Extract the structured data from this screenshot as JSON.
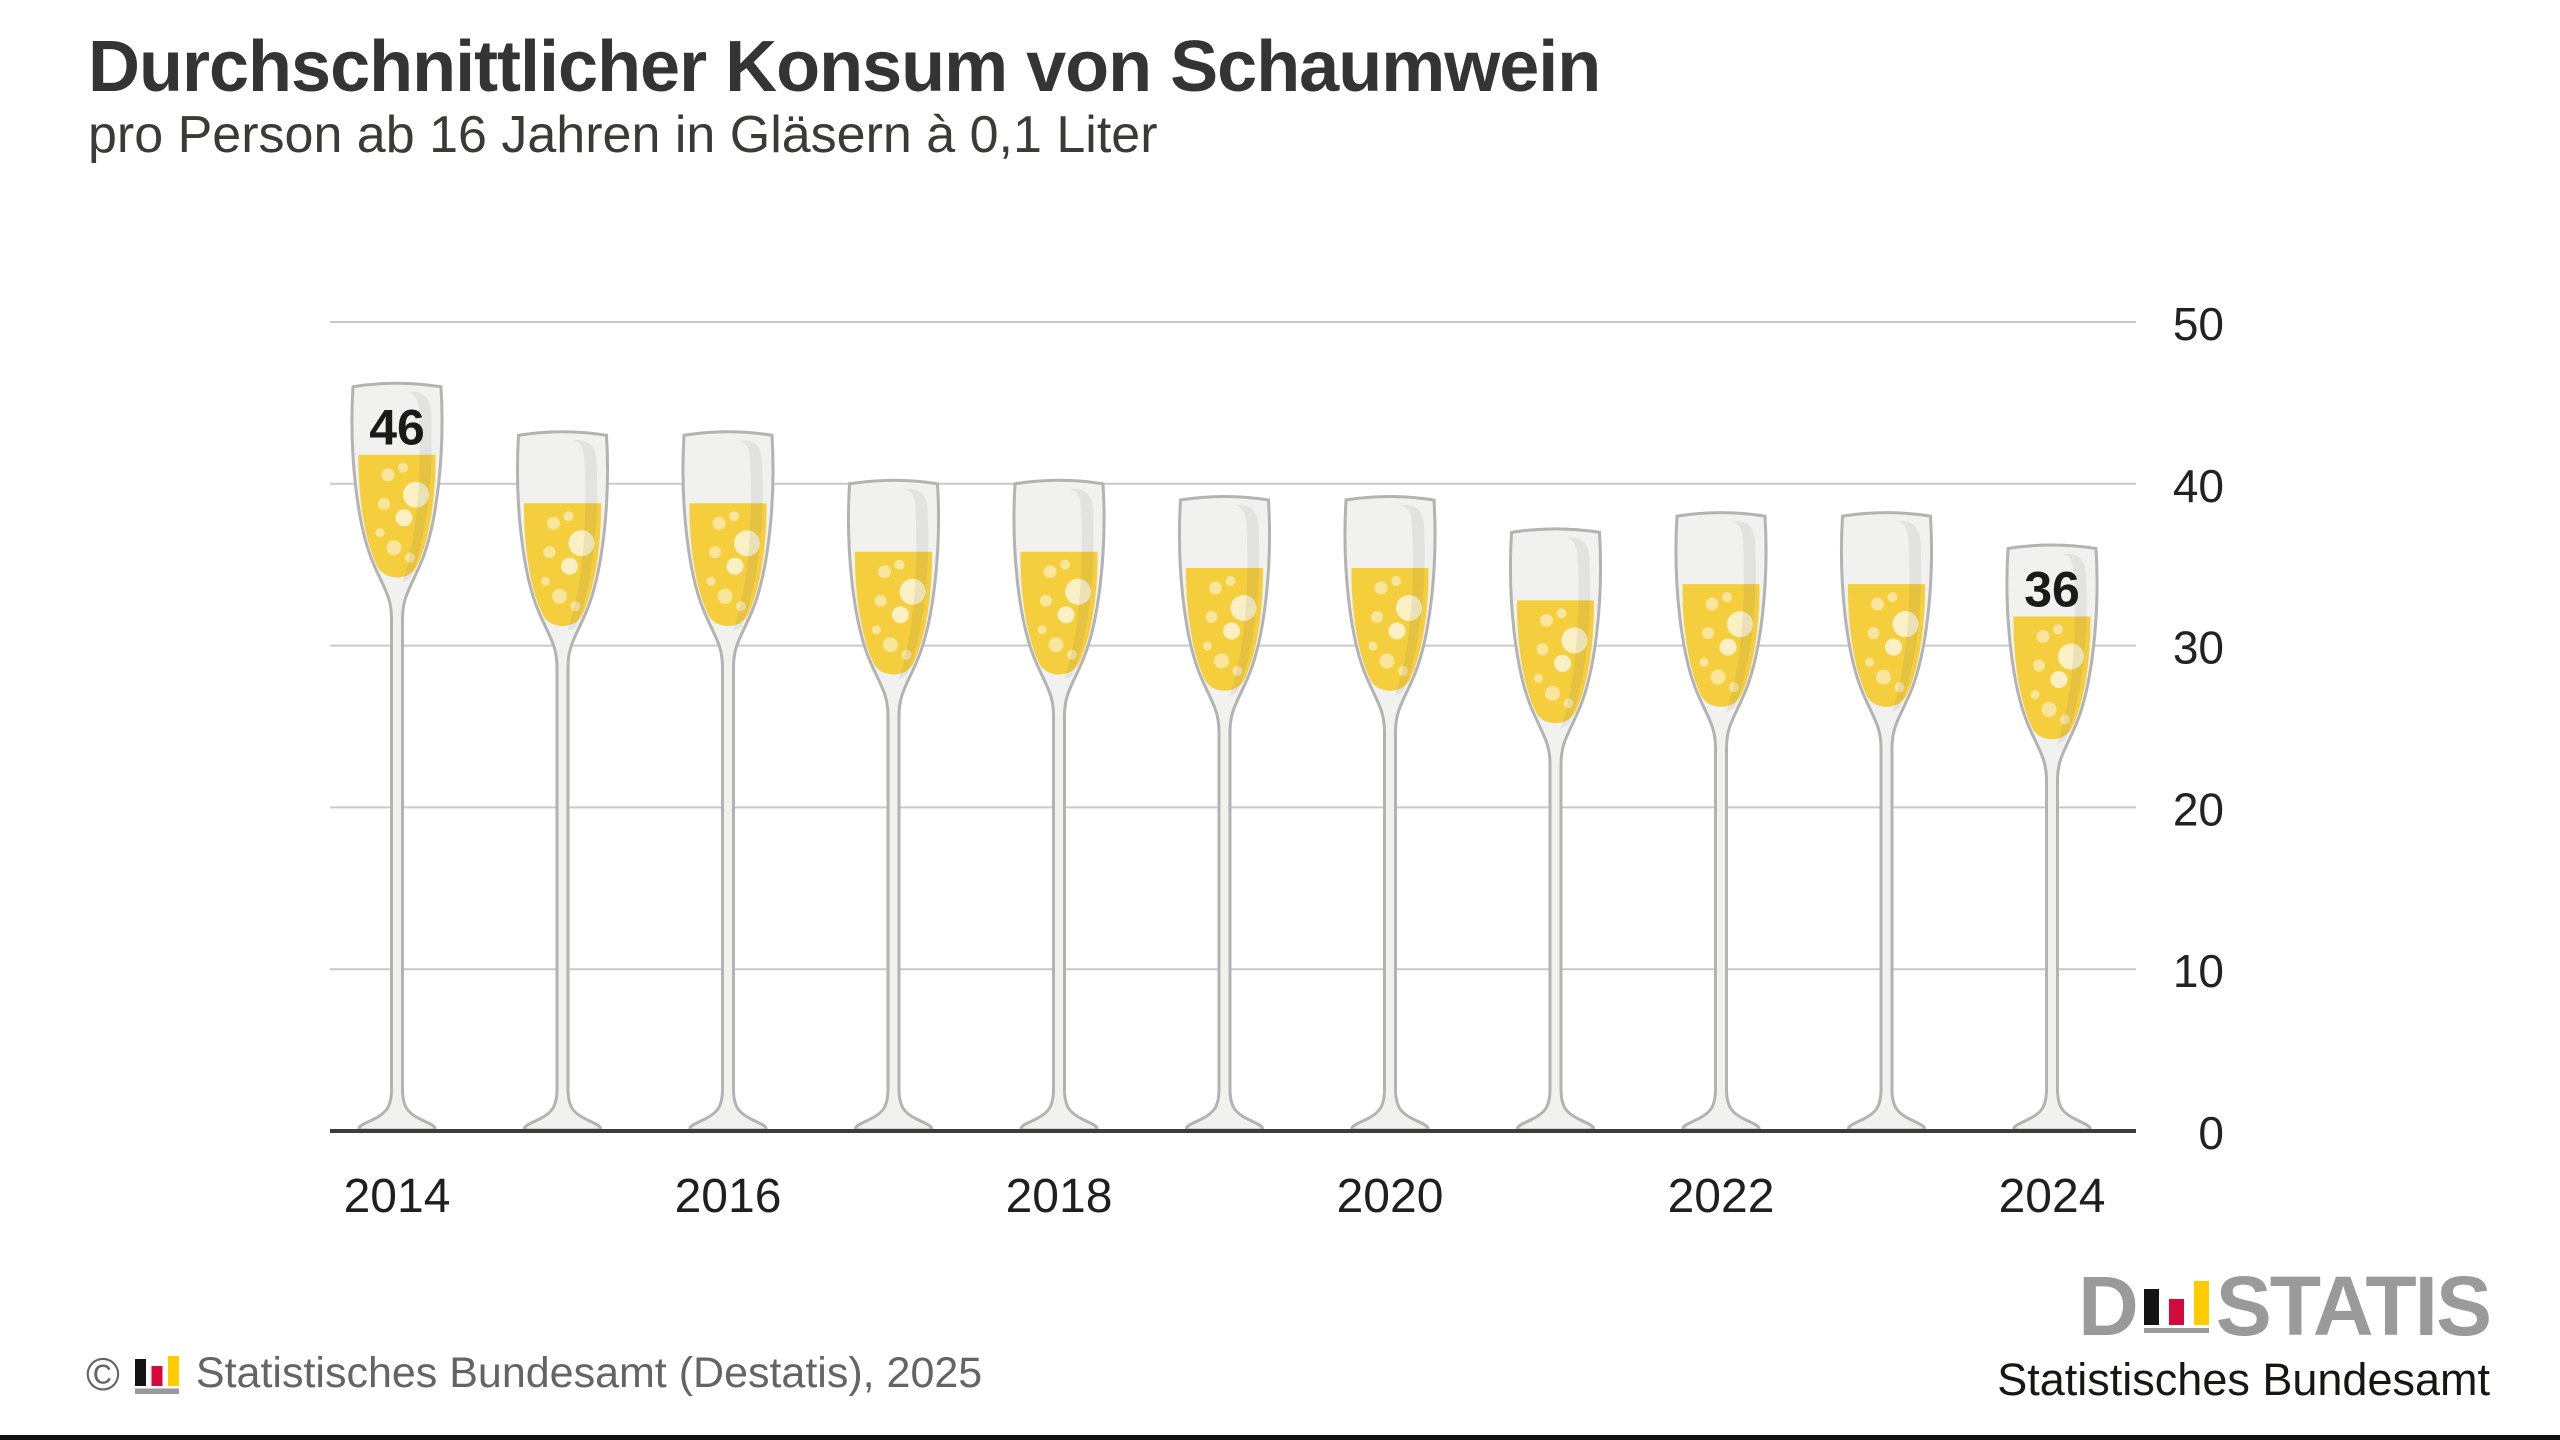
{
  "header": {
    "title": "Durchschnittlicher Konsum von Schaumwein",
    "subtitle": "pro Person ab 16 Jahren in Gläsern à 0,1 Liter"
  },
  "chart_data": {
    "type": "bar",
    "style": "pictogram-champagne-glass-columns",
    "title": "Durchschnittlicher Konsum von Schaumwein",
    "subtitle": "pro Person ab 16 Jahren in Gläsern à 0,1 Liter",
    "categories": [
      "2014",
      "2015",
      "2016",
      "2017",
      "2018",
      "2019",
      "2020",
      "2021",
      "2022",
      "2023",
      "2024"
    ],
    "values": [
      46,
      43,
      43,
      40,
      40,
      39,
      39,
      37,
      38,
      38,
      36
    ],
    "value_labels": [
      {
        "year": "2014",
        "label": "46"
      },
      {
        "year": "2024",
        "label": "36"
      }
    ],
    "x_tick_labels": [
      "2014",
      "2016",
      "2018",
      "2020",
      "2022",
      "2024"
    ],
    "y_ticks": [
      "50",
      "40",
      "30",
      "20",
      "10",
      "0"
    ],
    "ylim": [
      0,
      50
    ],
    "grid": "horizontal",
    "y_axis_side": "right",
    "legend": "none",
    "unit": "Gläser à 0,1 Liter pro Person ab 16 Jahren"
  },
  "colors": {
    "champagne": "#F5CE3E",
    "bubble_light": "#F9E59B",
    "bubble_lighter": "#FBF0C4",
    "glass": "#F1F1F0",
    "glass_outline": "#B3B3B3",
    "gridline": "#C9C9C9",
    "axis": "#3C3C3C",
    "text_dark": "#222222",
    "footer_gray": "#646464",
    "logo_gray": "#9A9A9A",
    "logo_black": "#141414",
    "logo_red": "#D4093C",
    "logo_yellow": "#FFCC00",
    "logo_base_gray": "#9A9A9A"
  },
  "footer": {
    "copyright_symbol": "©",
    "copyright_text": "Statistisches Bundesamt (Destatis), 2025"
  },
  "logo": {
    "prefix": "D",
    "suffix": "STATIS",
    "subtitle": "Statistisches Bundesamt"
  }
}
